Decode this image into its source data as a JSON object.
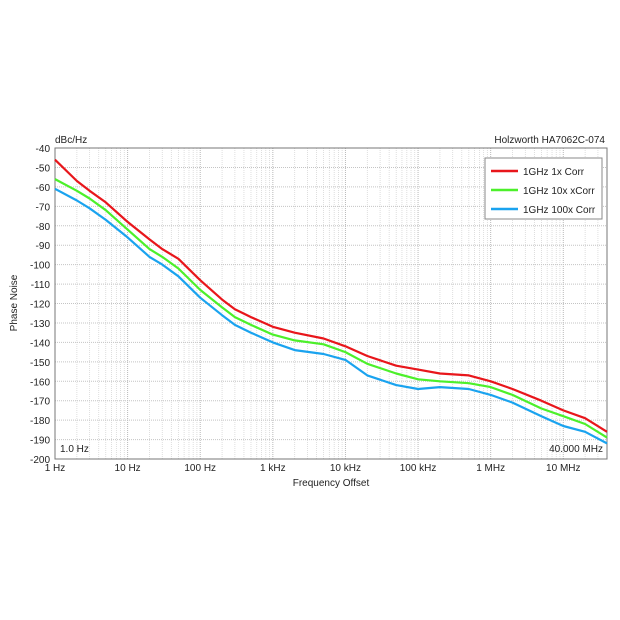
{
  "chart_data": {
    "type": "line",
    "title": "Holzworth HA7062C-074",
    "yunit": "dBc/Hz",
    "xlabel": "Frequency Offset",
    "ylabel": "Phase Noise",
    "xscale": "log",
    "xlim": [
      1,
      40000000
    ],
    "ylim": [
      -200,
      -40
    ],
    "grid": true,
    "legend": "top-right",
    "start_label": "1.0 Hz",
    "stop_label": "40.000 MHz",
    "xticks": [
      {
        "value": 1,
        "label": "1 Hz"
      },
      {
        "value": 10,
        "label": "10 Hz"
      },
      {
        "value": 100,
        "label": "100 Hz"
      },
      {
        "value": 1000,
        "label": "1 kHz"
      },
      {
        "value": 10000,
        "label": "10 kHz"
      },
      {
        "value": 100000,
        "label": "100 kHz"
      },
      {
        "value": 1000000,
        "label": "1 MHz"
      },
      {
        "value": 10000000,
        "label": "10 MHz"
      }
    ],
    "yticks": [
      -40,
      -50,
      -60,
      -70,
      -80,
      -90,
      -100,
      -110,
      -120,
      -130,
      -140,
      -150,
      -160,
      -170,
      -180,
      -190,
      -200
    ],
    "x": [
      1,
      2,
      3,
      5,
      10,
      20,
      30,
      50,
      100,
      200,
      300,
      500,
      1000,
      2000,
      5000,
      10000,
      20000,
      50000,
      100000,
      200000,
      500000,
      1000000,
      2000000,
      5000000,
      10000000,
      20000000,
      40000000
    ],
    "series": [
      {
        "name": "1GHz 1x Corr",
        "color": "#e8161b",
        "values": [
          -46,
          -57,
          -62,
          -68,
          -78,
          -87,
          -92,
          -97,
          -108,
          -118,
          -123,
          -127,
          -132,
          -135,
          -138,
          -142,
          -147,
          -152,
          -154,
          -156,
          -157,
          -160,
          -164,
          -170,
          -175,
          -179,
          -186
        ]
      },
      {
        "name": "1GHz 10x xCorr",
        "color": "#4cf02a",
        "values": [
          -56,
          -62,
          -66,
          -72,
          -82,
          -92,
          -96,
          -102,
          -113,
          -122,
          -127,
          -131,
          -136,
          -139,
          -141,
          -145,
          -151,
          -156,
          -159,
          -160,
          -161,
          -163,
          -167,
          -174,
          -178,
          -182,
          -189
        ]
      },
      {
        "name": "1GHz 100x Corr",
        "color": "#1aa3ef",
        "values": [
          -61,
          -67,
          -71,
          -77,
          -86,
          -96,
          -100,
          -106,
          -117,
          -126,
          -131,
          -135,
          -140,
          -144,
          -146,
          -149,
          -157,
          -162,
          -164,
          -163,
          -164,
          -167,
          -171,
          -178,
          -183,
          -186,
          -192
        ]
      }
    ]
  }
}
